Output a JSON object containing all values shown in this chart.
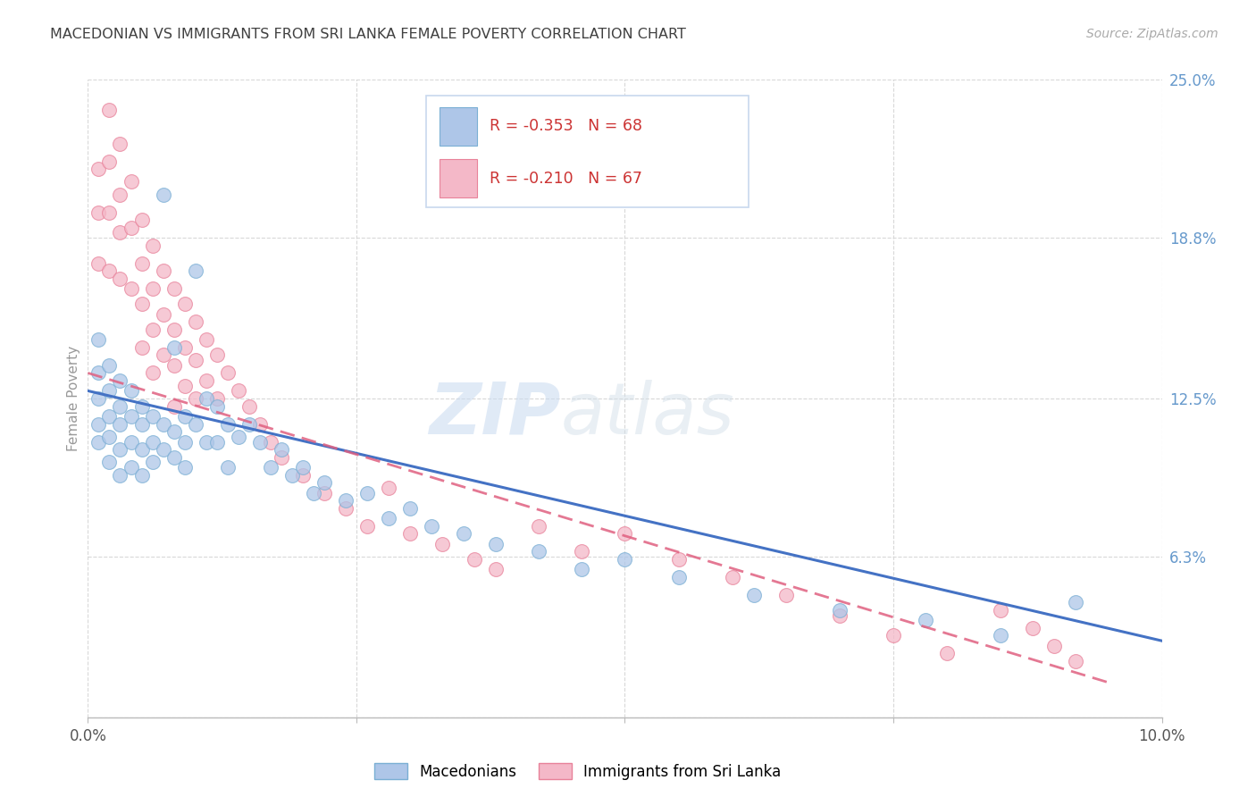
{
  "title": "MACEDONIAN VS IMMIGRANTS FROM SRI LANKA FEMALE POVERTY CORRELATION CHART",
  "source": "Source: ZipAtlas.com",
  "ylabel": "Female Poverty",
  "x_min": 0.0,
  "x_max": 0.1,
  "y_min": 0.0,
  "y_max": 0.25,
  "series1_color": "#aec6e8",
  "series1_edge": "#7aafd4",
  "series1_label": "Macedonians",
  "series1_R": "-0.353",
  "series1_N": "68",
  "series1_trend_color": "#4472c4",
  "series2_color": "#f4b8c8",
  "series2_edge": "#e8829a",
  "series2_label": "Immigrants from Sri Lanka",
  "series2_R": "-0.210",
  "series2_N": "67",
  "series2_trend_color": "#e06080",
  "watermark_zip": "ZIP",
  "watermark_atlas": "atlas",
  "grid_color": "#d8d8d8",
  "background_color": "#ffffff",
  "title_color": "#404040",
  "axis_label_color": "#6699cc",
  "legend_border_color": "#c8d8ee",
  "r_n_color": "#cc3333",
  "series1_x": [
    0.001,
    0.001,
    0.001,
    0.001,
    0.001,
    0.002,
    0.002,
    0.002,
    0.002,
    0.002,
    0.003,
    0.003,
    0.003,
    0.003,
    0.003,
    0.004,
    0.004,
    0.004,
    0.004,
    0.005,
    0.005,
    0.005,
    0.005,
    0.006,
    0.006,
    0.006,
    0.007,
    0.007,
    0.007,
    0.008,
    0.008,
    0.008,
    0.009,
    0.009,
    0.009,
    0.01,
    0.01,
    0.011,
    0.011,
    0.012,
    0.012,
    0.013,
    0.013,
    0.014,
    0.015,
    0.016,
    0.017,
    0.018,
    0.019,
    0.02,
    0.021,
    0.022,
    0.024,
    0.026,
    0.028,
    0.03,
    0.032,
    0.035,
    0.038,
    0.042,
    0.046,
    0.05,
    0.055,
    0.062,
    0.07,
    0.078,
    0.085,
    0.092
  ],
  "series1_y": [
    0.148,
    0.135,
    0.125,
    0.115,
    0.108,
    0.138,
    0.128,
    0.118,
    0.11,
    0.1,
    0.132,
    0.122,
    0.115,
    0.105,
    0.095,
    0.128,
    0.118,
    0.108,
    0.098,
    0.122,
    0.115,
    0.105,
    0.095,
    0.118,
    0.108,
    0.1,
    0.205,
    0.115,
    0.105,
    0.145,
    0.112,
    0.102,
    0.118,
    0.108,
    0.098,
    0.175,
    0.115,
    0.125,
    0.108,
    0.122,
    0.108,
    0.115,
    0.098,
    0.11,
    0.115,
    0.108,
    0.098,
    0.105,
    0.095,
    0.098,
    0.088,
    0.092,
    0.085,
    0.088,
    0.078,
    0.082,
    0.075,
    0.072,
    0.068,
    0.065,
    0.058,
    0.062,
    0.055,
    0.048,
    0.042,
    0.038,
    0.032,
    0.045
  ],
  "series2_x": [
    0.001,
    0.001,
    0.001,
    0.002,
    0.002,
    0.002,
    0.002,
    0.003,
    0.003,
    0.003,
    0.003,
    0.004,
    0.004,
    0.004,
    0.005,
    0.005,
    0.005,
    0.005,
    0.006,
    0.006,
    0.006,
    0.006,
    0.007,
    0.007,
    0.007,
    0.008,
    0.008,
    0.008,
    0.008,
    0.009,
    0.009,
    0.009,
    0.01,
    0.01,
    0.01,
    0.011,
    0.011,
    0.012,
    0.012,
    0.013,
    0.014,
    0.015,
    0.016,
    0.017,
    0.018,
    0.02,
    0.022,
    0.024,
    0.026,
    0.028,
    0.03,
    0.033,
    0.036,
    0.038,
    0.042,
    0.046,
    0.05,
    0.055,
    0.06,
    0.065,
    0.07,
    0.075,
    0.08,
    0.085,
    0.088,
    0.09,
    0.092
  ],
  "series2_y": [
    0.215,
    0.198,
    0.178,
    0.238,
    0.218,
    0.198,
    0.175,
    0.225,
    0.205,
    0.19,
    0.172,
    0.21,
    0.192,
    0.168,
    0.195,
    0.178,
    0.162,
    0.145,
    0.185,
    0.168,
    0.152,
    0.135,
    0.175,
    0.158,
    0.142,
    0.168,
    0.152,
    0.138,
    0.122,
    0.162,
    0.145,
    0.13,
    0.155,
    0.14,
    0.125,
    0.148,
    0.132,
    0.142,
    0.125,
    0.135,
    0.128,
    0.122,
    0.115,
    0.108,
    0.102,
    0.095,
    0.088,
    0.082,
    0.075,
    0.09,
    0.072,
    0.068,
    0.062,
    0.058,
    0.075,
    0.065,
    0.072,
    0.062,
    0.055,
    0.048,
    0.04,
    0.032,
    0.025,
    0.042,
    0.035,
    0.028,
    0.022
  ],
  "trend1_x0": 0.0,
  "trend1_y0": 0.128,
  "trend1_x1": 0.1,
  "trend1_y1": 0.03,
  "trend2_x0": 0.0,
  "trend2_y0": 0.135,
  "trend2_x1": 0.065,
  "trend2_y1": 0.052
}
